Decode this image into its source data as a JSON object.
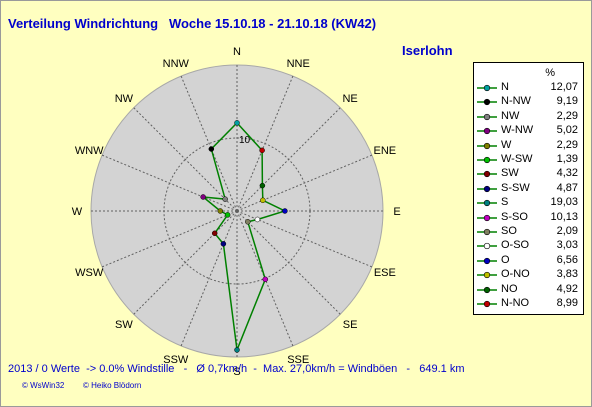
{
  "header": {
    "title": "Verteilung Windrichtung   Woche 15.10.18 - 21.10.18 (KW42)",
    "station": "Iserlohn"
  },
  "footer": {
    "stats": "2013 / 0 Werte  -> 0.0% Windstille   -   Ø 0,7km/h  -  Max. 27,0km/h = Windböen   -   649.1 km",
    "credit1": "© WsWin32",
    "credit2": "© Heiko Blödorn"
  },
  "chart_data": {
    "type": "radar",
    "title": "Verteilung Windrichtung   Woche 15.10.18 - 21.10.18 (KW42)",
    "unit": "%",
    "rmax": 20,
    "ring_label": "10",
    "series_color": "#008000",
    "background_color": "#d3d3d3",
    "directions": [
      "N",
      "NNE",
      "NE",
      "ENE",
      "E",
      "ESE",
      "SE",
      "SSE",
      "S",
      "SSW",
      "SW",
      "WSW",
      "W",
      "WNW",
      "NW",
      "NNW"
    ],
    "values": [
      12.07,
      8.99,
      4.92,
      3.83,
      6.56,
      3.03,
      2.09,
      10.13,
      19.03,
      4.87,
      4.32,
      1.39,
      2.29,
      5.02,
      2.29,
      9.19
    ],
    "legend": [
      {
        "name": "N",
        "value": "12,07",
        "color": "#00a0a0"
      },
      {
        "name": "N-NW",
        "value": "9,19",
        "color": "#000000"
      },
      {
        "name": "NW",
        "value": "2,29",
        "color": "#808080"
      },
      {
        "name": "W-NW",
        "value": "5,02",
        "color": "#800080"
      },
      {
        "name": "W",
        "value": "2,29",
        "color": "#808000"
      },
      {
        "name": "W-SW",
        "value": "1,39",
        "color": "#00c000"
      },
      {
        "name": "SW",
        "value": "4,32",
        "color": "#800000"
      },
      {
        "name": "S-SW",
        "value": "4,87",
        "color": "#000080"
      },
      {
        "name": "S",
        "value": "19,03",
        "color": "#008080"
      },
      {
        "name": "S-SO",
        "value": "10,13",
        "color": "#c000c0"
      },
      {
        "name": "SO",
        "value": "2,09",
        "color": "#808060"
      },
      {
        "name": "O-SO",
        "value": "3,03",
        "color": "#ffffff"
      },
      {
        "name": "O",
        "value": "6,56",
        "color": "#0000c0"
      },
      {
        "name": "O-NO",
        "value": "3,83",
        "color": "#c0c000"
      },
      {
        "name": "NO",
        "value": "4,92",
        "color": "#006000"
      },
      {
        "name": "N-NO",
        "value": "8,99",
        "color": "#c00000"
      }
    ]
  }
}
